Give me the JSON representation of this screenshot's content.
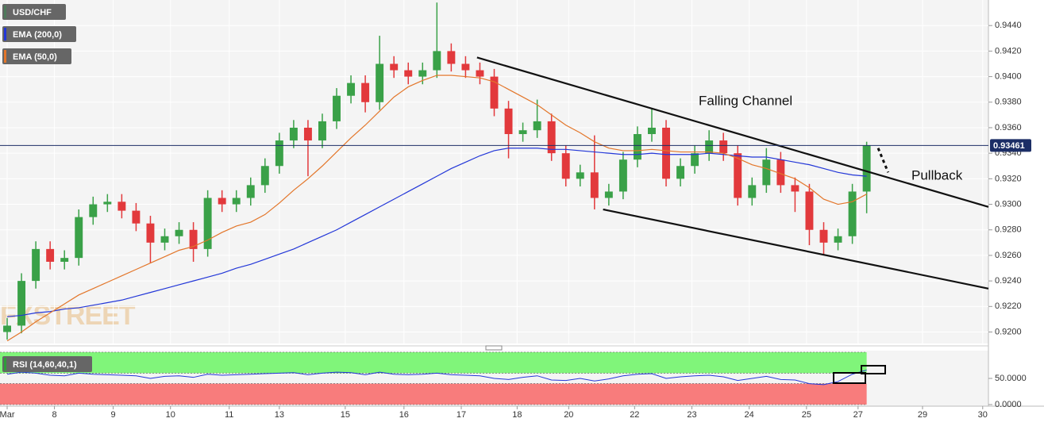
{
  "chart_data": [
    {
      "type": "candlestick",
      "watermark": "FXSTREET",
      "ohlc": {
        "name": "USD/CHF",
        "color": "#4f7a5c",
        "up_color": "#3aa148",
        "down_color": "#e2393c",
        "open": [
          0.92,
          0.9205,
          0.924,
          0.9265,
          0.9255,
          0.9258,
          0.929,
          0.93,
          0.9302,
          0.9295,
          0.9285,
          0.927,
          0.9275,
          0.928,
          0.9265,
          0.9305,
          0.93,
          0.9305,
          0.9315,
          0.933,
          0.935,
          0.936,
          0.935,
          0.9365,
          0.9385,
          0.9395,
          0.938,
          0.941,
          0.9405,
          0.94,
          0.9405,
          0.942,
          0.941,
          0.9405,
          0.94,
          0.9375,
          0.9355,
          0.9358,
          0.9365,
          0.934,
          0.932,
          0.9325,
          0.9305,
          0.931,
          0.9335,
          0.9355,
          0.936,
          0.932,
          0.933,
          0.934,
          0.935,
          0.934,
          0.9305,
          0.9315,
          0.9335,
          0.9315,
          0.931,
          0.928,
          0.927,
          0.9275,
          0.931
        ],
        "high": [
          0.9211,
          0.9246,
          0.9271,
          0.9271,
          0.9264,
          0.9296,
          0.9306,
          0.9308,
          0.9308,
          0.9301,
          0.9291,
          0.9281,
          0.9286,
          0.9286,
          0.9311,
          0.9311,
          0.9311,
          0.9321,
          0.9336,
          0.9356,
          0.9366,
          0.9366,
          0.9371,
          0.9391,
          0.9401,
          0.9401,
          0.9432,
          0.9416,
          0.9411,
          0.9411,
          0.9458,
          0.9426,
          0.9416,
          0.9411,
          0.9406,
          0.9381,
          0.9364,
          0.9382,
          0.9371,
          0.9346,
          0.9331,
          0.9354,
          0.9316,
          0.9341,
          0.9361,
          0.9375,
          0.9366,
          0.9336,
          0.9346,
          0.9358,
          0.9356,
          0.9346,
          0.9321,
          0.9344,
          0.9341,
          0.9321,
          0.9316,
          0.9286,
          0.9281,
          0.9316,
          0.9349
        ],
        "low": [
          0.9194,
          0.9199,
          0.9234,
          0.9249,
          0.9249,
          0.9252,
          0.9284,
          0.9294,
          0.9289,
          0.9279,
          0.9254,
          0.9264,
          0.9269,
          0.9255,
          0.9259,
          0.9294,
          0.9294,
          0.9299,
          0.9309,
          0.9324,
          0.9344,
          0.9322,
          0.9344,
          0.9359,
          0.9379,
          0.9372,
          0.9374,
          0.9399,
          0.9394,
          0.9394,
          0.9399,
          0.9404,
          0.9399,
          0.9394,
          0.9369,
          0.9336,
          0.9349,
          0.9352,
          0.9334,
          0.9314,
          0.9314,
          0.9296,
          0.9299,
          0.9304,
          0.9329,
          0.9349,
          0.9314,
          0.9314,
          0.9324,
          0.9334,
          0.9334,
          0.9299,
          0.9299,
          0.9309,
          0.9309,
          0.9294,
          0.9268,
          0.9261,
          0.9264,
          0.9269,
          0.9293
        ],
        "close": [
          0.9205,
          0.924,
          0.9265,
          0.9255,
          0.9258,
          0.929,
          0.93,
          0.9302,
          0.9295,
          0.9285,
          0.927,
          0.9275,
          0.928,
          0.9265,
          0.9305,
          0.93,
          0.9305,
          0.9315,
          0.933,
          0.935,
          0.936,
          0.935,
          0.9365,
          0.9385,
          0.9395,
          0.938,
          0.941,
          0.9405,
          0.94,
          0.9405,
          0.942,
          0.941,
          0.9405,
          0.94,
          0.9375,
          0.9355,
          0.9358,
          0.9365,
          0.934,
          0.932,
          0.9325,
          0.9305,
          0.931,
          0.9335,
          0.9355,
          0.936,
          0.932,
          0.933,
          0.934,
          0.935,
          0.934,
          0.9305,
          0.9315,
          0.9335,
          0.9315,
          0.931,
          0.928,
          0.927,
          0.9275,
          0.931,
          0.9346
        ]
      },
      "series": [
        {
          "name": "EMA (200,0)",
          "color": "#2337d8",
          "values": [
            0.9212,
            0.9213,
            0.9215,
            0.9216,
            0.9218,
            0.9219,
            0.9221,
            0.9223,
            0.9225,
            0.9228,
            0.9231,
            0.9234,
            0.9237,
            0.924,
            0.9243,
            0.9246,
            0.925,
            0.9253,
            0.9257,
            0.9261,
            0.9265,
            0.927,
            0.9275,
            0.928,
            0.9286,
            0.9292,
            0.9298,
            0.9304,
            0.931,
            0.9316,
            0.9322,
            0.9328,
            0.9333,
            0.9338,
            0.9342,
            0.9344,
            0.9344,
            0.9344,
            0.9343,
            0.9343,
            0.9342,
            0.9341,
            0.934,
            0.9339,
            0.9339,
            0.934,
            0.9339,
            0.9339,
            0.9339,
            0.934,
            0.9339,
            0.9338,
            0.9337,
            0.9337,
            0.9335,
            0.9333,
            0.9331,
            0.9328,
            0.9325,
            0.9323,
            0.9322
          ]
        },
        {
          "name": "EMA (50,0)",
          "color": "#e3762a",
          "values": [
            0.9193,
            0.92,
            0.9208,
            0.9215,
            0.9222,
            0.9229,
            0.9234,
            0.9239,
            0.9244,
            0.9249,
            0.9254,
            0.9259,
            0.9264,
            0.9267,
            0.9272,
            0.9278,
            0.9283,
            0.9286,
            0.9292,
            0.9301,
            0.9311,
            0.932,
            0.933,
            0.9341,
            0.9352,
            0.9362,
            0.9373,
            0.9384,
            0.9392,
            0.9397,
            0.9401,
            0.9401,
            0.94,
            0.9399,
            0.9396,
            0.939,
            0.9384,
            0.9378,
            0.937,
            0.9362,
            0.9356,
            0.9349,
            0.9344,
            0.9342,
            0.9342,
            0.9343,
            0.9342,
            0.9341,
            0.9341,
            0.9341,
            0.934,
            0.9336,
            0.9331,
            0.9328,
            0.9324,
            0.932,
            0.9313,
            0.9304,
            0.93,
            0.9302,
            0.9308
          ]
        }
      ],
      "last_price": 0.93461,
      "trendlines": [
        {
          "x": [
            32.8,
            68.5
          ],
          "y": [
            0.9415,
            0.9298
          ]
        },
        {
          "x": [
            41.6,
            68.5
          ],
          "y": [
            0.9296,
            0.9234
          ]
        },
        {
          "x": [
            60.8,
            61.5
          ],
          "y": [
            0.9344,
            0.9325
          ],
          "dashed": true
        }
      ],
      "annotations": [
        "Falling Channel",
        "Pullback"
      ],
      "xlim": [
        -0.5,
        68.5
      ],
      "ylim": [
        0.9191,
        0.946
      ],
      "yticks": [
        {
          "value": 0.92,
          "label": "0.9200"
        },
        {
          "value": 0.922,
          "label": "0.9220"
        },
        {
          "value": 0.924,
          "label": "0.9240"
        },
        {
          "value": 0.926,
          "label": "0.9260"
        },
        {
          "value": 0.928,
          "label": "0.9280"
        },
        {
          "value": 0.93,
          "label": "0.9300"
        },
        {
          "value": 0.932,
          "label": "0.9320"
        },
        {
          "value": 0.934,
          "label": "0.9340"
        },
        {
          "value": 0.936,
          "label": "0.9360"
        },
        {
          "value": 0.938,
          "label": "0.9380"
        },
        {
          "value": 0.94,
          "label": "0.9400"
        },
        {
          "value": 0.942,
          "label": "0.9420"
        },
        {
          "value": 0.944,
          "label": "0.9440"
        }
      ],
      "xticks": [
        {
          "value": 0,
          "label": "Mar"
        },
        {
          "value": 3.3,
          "label": "8"
        },
        {
          "value": 7.4,
          "label": "9"
        },
        {
          "value": 11.4,
          "label": "10"
        },
        {
          "value": 15.5,
          "label": "11"
        },
        {
          "value": 19,
          "label": "13"
        },
        {
          "value": 23.6,
          "label": "15"
        },
        {
          "value": 27.7,
          "label": "16"
        },
        {
          "value": 31.7,
          "label": "17"
        },
        {
          "value": 35.6,
          "label": "18"
        },
        {
          "value": 39.2,
          "label": "20"
        },
        {
          "value": 43.8,
          "label": "22"
        },
        {
          "value": 47.8,
          "label": "23"
        },
        {
          "value": 51.8,
          "label": "24"
        },
        {
          "value": 55.8,
          "label": "25"
        },
        {
          "value": 59.4,
          "label": "27"
        },
        {
          "value": 63.9,
          "label": "29"
        },
        {
          "value": 68.1,
          "label": "30"
        }
      ],
      "grid": true
    },
    {
      "type": "line",
      "series": [
        {
          "name": "RSI (14,60,40,1)",
          "color": "#2337d8",
          "values": [
            58,
            62,
            60,
            56,
            55,
            60,
            58,
            57,
            56,
            55,
            50,
            54,
            55,
            52,
            58,
            56,
            57,
            58,
            59,
            60,
            61,
            57,
            60,
            62,
            61,
            57,
            62,
            58,
            57,
            58,
            60,
            57,
            56,
            55,
            50,
            48,
            52,
            55,
            47,
            46,
            50,
            45,
            49,
            55,
            58,
            59,
            50,
            53,
            55,
            56,
            53,
            46,
            50,
            54,
            48,
            47,
            40,
            38,
            44,
            58,
            66
          ]
        }
      ],
      "bands": [
        {
          "from": 60,
          "to": 100,
          "color": "#80f57a"
        },
        {
          "from": 0,
          "to": 40,
          "color": "#f87c7c"
        }
      ],
      "xlim": [
        -0.5,
        68.5
      ],
      "ylim": [
        0,
        100
      ],
      "yticks": [
        {
          "value": 50,
          "label": "50.0000"
        },
        {
          "value": 0,
          "label": "0.0000"
        }
      ]
    }
  ]
}
